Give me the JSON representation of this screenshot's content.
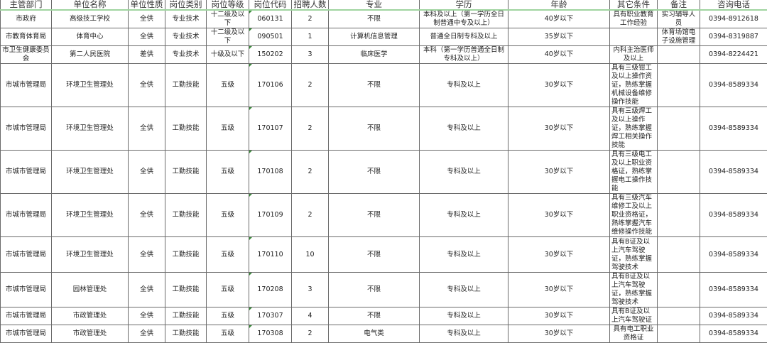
{
  "headers": [
    "主管部门",
    "单位名称",
    "单位性质",
    "岗位类别",
    "岗位等级",
    "岗位代码",
    "招聘人数",
    "专业",
    "学历",
    "年龄",
    "其它条件",
    "备注",
    "咨询电话"
  ],
  "rows": [
    [
      "市政府",
      "高级技工学校",
      "全供",
      "专业技术",
      "十二级及以下",
      "060131",
      "2",
      "不限",
      "本科及以上（第一学历全日制普通中专及以上）",
      "40岁以下",
      "具有职业教育工作经验",
      "实习辅导人员",
      "0394-8912618"
    ],
    [
      "市教育体育局",
      "体育中心",
      "全供",
      "专业技术",
      "十二级及以下",
      "090501",
      "1",
      "计算机信息管理",
      "普通全日制专科及以上",
      "35岁以下",
      "",
      "体育场馆电子设施管理",
      "0394-8319887"
    ],
    [
      "市卫生健康委员会",
      "第二人民医院",
      "差供",
      "专业技术",
      "十级及以下",
      "150202",
      "3",
      "临床医学",
      "本科（第一学历普通全日制专科及以上）",
      "40岁以下",
      "内科主治医师及以上",
      "",
      "0394-8224421"
    ],
    [
      "市城市管理局",
      "环境卫生管理处",
      "全供",
      "工勤技能",
      "五级",
      "170106",
      "2",
      "不限",
      "专科及以上",
      "30岁以下",
      "具有三级钳工及以上操作资证，熟练掌握机械设备维修操作技能",
      "",
      "0394-8589334"
    ],
    [
      "市城市管理局",
      "环境卫生管理处",
      "全供",
      "工勤技能",
      "五级",
      "170107",
      "2",
      "不限",
      "专科及以上",
      "30岁以下",
      "具有三级焊工及以上操作证，熟练掌握焊工相关操作技能",
      "",
      "0394-8589334"
    ],
    [
      "市城市管理局",
      "环境卫生管理处",
      "全供",
      "工勤技能",
      "五级",
      "170108",
      "2",
      "不限",
      "专科及以上",
      "30岁以下",
      "具有三级电工及以上职业资格证，熟练掌握电工操作技能",
      "",
      "0394-8589334"
    ],
    [
      "市城市管理局",
      "环境卫生管理处",
      "全供",
      "工勤技能",
      "五级",
      "170109",
      "2",
      "不限",
      "专科及以上",
      "30岁以下",
      "具有三级汽车维修工及以上职业资格证，熟练掌握汽车维修操作技能",
      "",
      "0394-8589334"
    ],
    [
      "市城市管理局",
      "环境卫生管理处",
      "全供",
      "工勤技能",
      "五级",
      "170110",
      "10",
      "不限",
      "专科及以上",
      "30岁以下",
      "具有B证及以上汽车驾驶证，熟练掌握驾驶技术",
      "",
      "0394-8589334"
    ],
    [
      "市城市管理局",
      "园林管理处",
      "全供",
      "工勤技能",
      "五级",
      "170208",
      "3",
      "不限",
      "专科及以上",
      "30岁以下",
      "具有B证及以上汽车驾驶证，熟练掌握驾驶技术",
      "",
      "0394-8589334"
    ],
    [
      "市城市管理局",
      "市政管理处",
      "全供",
      "工勤技能",
      "五级",
      "170307",
      "4",
      "不限",
      "专科及以上",
      "30岁以下",
      "具有B证及以上汽车驾驶证",
      "",
      "0394-8589334"
    ],
    [
      "市城市管理局",
      "市政管理处",
      "全供",
      "工勤技能",
      "五级",
      "170308",
      "2",
      "电气类",
      "专科及以上",
      "30岁以下",
      "具有电工职业资格证",
      "",
      "0394-8589334"
    ]
  ]
}
